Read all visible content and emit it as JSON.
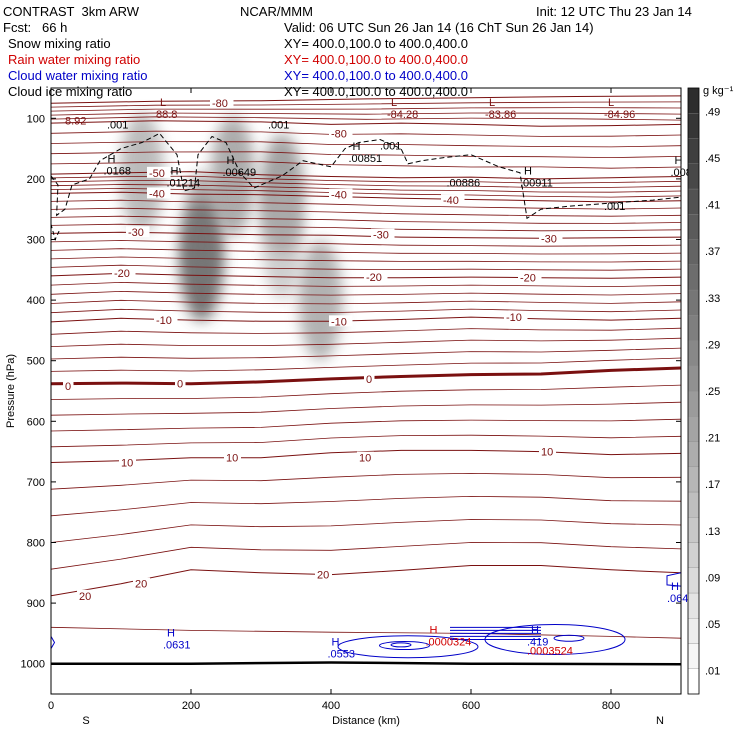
{
  "header": {
    "model": "CONTRAST  3km ARW",
    "org": "NCAR/MMM",
    "init": "Init: 12 UTC Thu 23 Jan 14",
    "fcst": "Fcst:   66 h",
    "valid": "Valid: 06 UTC Sun 26 Jan 14 (16 ChT Sun 26 Jan 14)"
  },
  "fields": [
    {
      "name": "Snow mixing ratio",
      "xy": "XY= 400.0,100.0 to 400.0,400.0",
      "color": "#000000"
    },
    {
      "name": "Rain water mixing ratio",
      "xy": "XY= 400.0,100.0 to 400.0,400.0",
      "color": "#d00000"
    },
    {
      "name": "Cloud water mixing ratio",
      "xy": "XY= 400.0,100.0 to 400.0,400.0",
      "color": "#0000c8"
    },
    {
      "name": "Cloud ice mixing ratio",
      "xy": "XY= 400.0,100.0 to 400.0,400.0",
      "color": "#000000"
    }
  ],
  "chart_data": {
    "type": "cross-section",
    "xlabel": "Distance (km)",
    "ylabel": "Pressure (hPa)",
    "xlim": [
      0,
      900
    ],
    "ylim": [
      1050,
      50
    ],
    "x_ticks": [
      0,
      200,
      400,
      600,
      800
    ],
    "y_ticks": [
      100,
      200,
      300,
      400,
      500,
      600,
      700,
      800,
      900,
      1000
    ],
    "x_end_labels": {
      "left": "S",
      "right": "N"
    },
    "colorbar": {
      "unit": "g kg⁻¹",
      "levels": [
        ".01",
        ".05",
        ".09",
        ".13",
        ".17",
        ".21",
        ".25",
        ".29",
        ".33",
        ".37",
        ".41",
        ".45",
        ".49"
      ]
    },
    "temperature_contours": [
      {
        "label": "-80",
        "points": [
          [
            0,
            75
          ],
          [
            150,
            72
          ],
          [
            300,
            71
          ],
          [
            450,
            68
          ],
          [
            600,
            66
          ],
          [
            750,
            64
          ],
          [
            900,
            63
          ]
        ]
      },
      {
        "label": "-80",
        "points": [
          [
            0,
            108
          ],
          [
            150,
            104
          ],
          [
            300,
            106
          ],
          [
            400,
            110
          ],
          [
            500,
            108
          ],
          [
            600,
            110
          ],
          [
            700,
            113
          ],
          [
            800,
            112
          ],
          [
            900,
            110
          ]
        ]
      },
      {
        "label": "-50",
        "points": [
          [
            0,
            192
          ],
          [
            100,
            190
          ],
          [
            200,
            188
          ],
          [
            300,
            193
          ],
          [
            400,
            196
          ],
          [
            500,
            198
          ],
          [
            600,
            197
          ],
          [
            700,
            200
          ],
          [
            800,
            198
          ],
          [
            900,
            196
          ]
        ]
      },
      {
        "label": "-40",
        "points": [
          [
            0,
            224
          ],
          [
            100,
            222
          ],
          [
            200,
            225
          ],
          [
            300,
            226
          ],
          [
            400,
            229
          ],
          [
            500,
            232
          ],
          [
            600,
            234
          ],
          [
            700,
            236
          ],
          [
            800,
            238
          ],
          [
            900,
            236
          ]
        ]
      },
      {
        "label": "-30",
        "points": [
          [
            0,
            290
          ],
          [
            100,
            288
          ],
          [
            200,
            290
          ],
          [
            300,
            292
          ],
          [
            400,
            293
          ],
          [
            500,
            296
          ],
          [
            600,
            297
          ],
          [
            700,
            298
          ],
          [
            800,
            297
          ],
          [
            900,
            296
          ]
        ]
      },
      {
        "label": "-20",
        "points": [
          [
            0,
            360
          ],
          [
            100,
            356
          ],
          [
            200,
            359
          ],
          [
            300,
            361
          ],
          [
            400,
            363
          ],
          [
            500,
            363
          ],
          [
            600,
            362
          ],
          [
            700,
            363
          ],
          [
            800,
            364
          ],
          [
            900,
            362
          ]
        ]
      },
      {
        "label": "-10",
        "points": [
          [
            0,
            436
          ],
          [
            100,
            430
          ],
          [
            200,
            433
          ],
          [
            300,
            435
          ],
          [
            400,
            435
          ],
          [
            500,
            432
          ],
          [
            600,
            428
          ],
          [
            700,
            431
          ],
          [
            800,
            433
          ],
          [
            900,
            430
          ]
        ]
      },
      {
        "label": "0",
        "points": [
          [
            0,
            538
          ],
          [
            100,
            537
          ],
          [
            200,
            538
          ],
          [
            300,
            535
          ],
          [
            400,
            530
          ],
          [
            500,
            526
          ],
          [
            600,
            523
          ],
          [
            700,
            522
          ],
          [
            800,
            516
          ],
          [
            900,
            512
          ]
        ]
      },
      {
        "label": "10",
        "points": [
          [
            0,
            668
          ],
          [
            100,
            665
          ],
          [
            200,
            660
          ],
          [
            300,
            660
          ],
          [
            400,
            652
          ],
          [
            500,
            648
          ],
          [
            600,
            648
          ],
          [
            700,
            650
          ],
          [
            800,
            655
          ],
          [
            900,
            653
          ]
        ]
      },
      {
        "label": "20",
        "points": [
          [
            0,
            888
          ],
          [
            100,
            868
          ],
          [
            200,
            845
          ],
          [
            300,
            850
          ],
          [
            400,
            853
          ],
          [
            500,
            846
          ],
          [
            600,
            838
          ],
          [
            700,
            838
          ],
          [
            800,
            845
          ],
          [
            900,
            850
          ]
        ]
      }
    ],
    "temperature_labels": [
      "-80",
      "-80",
      "-50",
      "-40",
      "-40",
      "-40",
      "-30",
      "-30",
      "-30",
      "-20",
      "-20",
      "-20",
      "-10",
      "-10",
      "-10",
      "0",
      "0",
      "0",
      "10",
      "10",
      "10",
      "10",
      "20",
      "20",
      "20"
    ],
    "extrema": [
      {
        "kind": "L",
        "value": "88.8",
        "x": 150,
        "p": 90,
        "series": "temperature"
      },
      {
        "kind": "L",
        "value": "-84.28",
        "x": 480,
        "p": 90,
        "series": "temperature"
      },
      {
        "kind": "L",
        "value": "-83.86",
        "x": 620,
        "p": 90,
        "series": "temperature"
      },
      {
        "kind": "L",
        "value": "-84.96",
        "x": 790,
        "p": 90,
        "series": "temperature"
      },
      {
        "kind": "",
        "value": "8.92",
        "x": 20,
        "p": 100,
        "series": "temperature"
      },
      {
        "kind": "H",
        "value": ".0168",
        "x": 75,
        "p": 183,
        "series": "ice"
      },
      {
        "kind": "H",
        "value": ".01214",
        "x": 165,
        "p": 203,
        "series": "ice"
      },
      {
        "kind": "H",
        "value": ".00649",
        "x": 245,
        "p": 185,
        "series": "ice"
      },
      {
        "kind": "H",
        "value": ".00851",
        "x": 425,
        "p": 162,
        "series": "ice"
      },
      {
        "kind": "",
        "value": ".00886",
        "x": 565,
        "p": 203,
        "series": "ice"
      },
      {
        "kind": "H",
        "value": ".00911",
        "x": 670,
        "p": 203,
        "series": "ice"
      },
      {
        "kind": "H",
        "value": ".008",
        "x": 885,
        "p": 185,
        "series": "ice"
      },
      {
        "kind": "H",
        "value": ".064",
        "x": 880,
        "p": 888,
        "series": "cloud water"
      },
      {
        "kind": "H",
        "value": ".0631",
        "x": 160,
        "p": 965,
        "series": "cloud water"
      },
      {
        "kind": "H",
        "value": ".0553",
        "x": 395,
        "p": 980,
        "series": "cloud water"
      },
      {
        "kind": "H",
        "value": ".0000324",
        "x": 535,
        "p": 960,
        "series": "rain"
      },
      {
        "kind": "H",
        "value": ".419",
        "x": 680,
        "p": 960,
        "series": "cloud water"
      },
      {
        "kind": "",
        "value": ".0003524",
        "x": 680,
        "p": 975,
        "series": "rain"
      }
    ],
    "ice_contour_labels": [
      ".001",
      ".001",
      ".001",
      ".001"
    ],
    "snow_maxima": [
      {
        "x": 130,
        "p": 190,
        "value": 0.22
      },
      {
        "x": 215,
        "p": 335,
        "value": 0.45
      },
      {
        "x": 260,
        "p": 195,
        "value": 0.27
      },
      {
        "x": 330,
        "p": 225,
        "value": 0.3
      },
      {
        "x": 385,
        "p": 400,
        "value": 0.25
      }
    ]
  }
}
